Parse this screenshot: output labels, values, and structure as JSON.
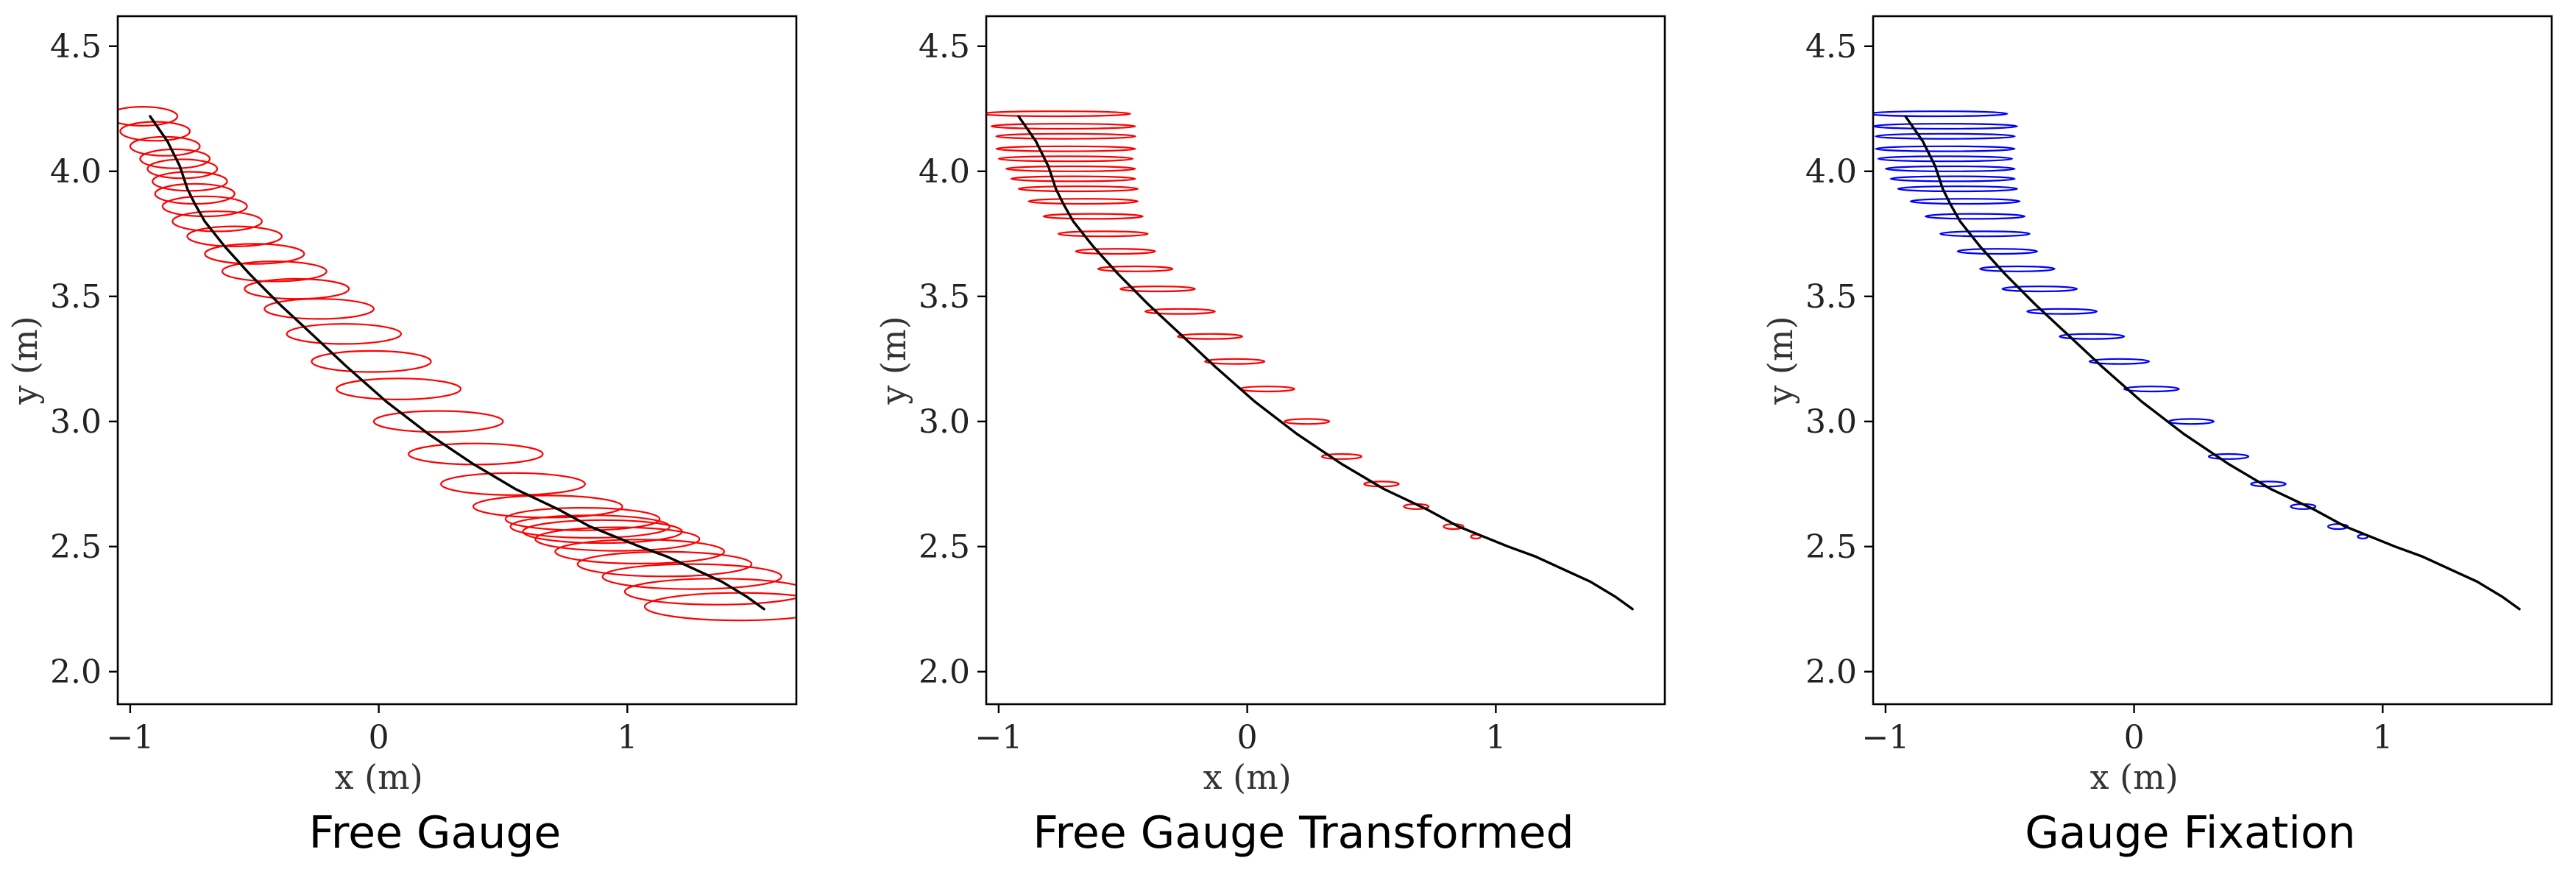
{
  "chart_data": [
    {
      "type": "line",
      "caption": "Free Gauge",
      "xlabel": "x (m)",
      "ylabel": "y (m)",
      "xlim": [
        -1.05,
        1.68
      ],
      "ylim": [
        1.87,
        4.62
      ],
      "xticks": [
        -1,
        0,
        1
      ],
      "xtick_labels": [
        "−1",
        "0",
        "1"
      ],
      "yticks": [
        2.0,
        2.5,
        3.0,
        3.5,
        4.0,
        4.5
      ],
      "ytick_labels": [
        "2.0",
        "2.5",
        "3.0",
        "3.5",
        "4.0",
        "4.5"
      ],
      "grid": false,
      "trajectory_color": "#000000",
      "ellipse_color": "#ff0000",
      "trajectory": {
        "x": [
          -0.92,
          -0.85,
          -0.8,
          -0.77,
          -0.74,
          -0.7,
          -0.62,
          -0.52,
          -0.4,
          -0.27,
          -0.13,
          0.03,
          0.2,
          0.38,
          0.55,
          0.72,
          0.85,
          0.95,
          1.05,
          1.16,
          1.27,
          1.38,
          1.48,
          1.55
        ],
        "y": [
          4.22,
          4.12,
          4.02,
          3.93,
          3.87,
          3.8,
          3.7,
          3.59,
          3.47,
          3.35,
          3.22,
          3.08,
          2.95,
          2.83,
          2.73,
          2.65,
          2.58,
          2.54,
          2.5,
          2.46,
          2.41,
          2.36,
          2.3,
          2.25
        ]
      },
      "uncertainty_ellipses": [
        {
          "x": -0.95,
          "y": 4.22,
          "sx": 0.14,
          "sy": 0.038
        },
        {
          "x": -0.9,
          "y": 4.16,
          "sx": 0.14,
          "sy": 0.038
        },
        {
          "x": -0.86,
          "y": 4.1,
          "sx": 0.14,
          "sy": 0.038
        },
        {
          "x": -0.82,
          "y": 4.05,
          "sx": 0.14,
          "sy": 0.038
        },
        {
          "x": -0.79,
          "y": 4.01,
          "sx": 0.14,
          "sy": 0.038
        },
        {
          "x": -0.76,
          "y": 3.96,
          "sx": 0.15,
          "sy": 0.038
        },
        {
          "x": -0.74,
          "y": 3.91,
          "sx": 0.16,
          "sy": 0.04
        },
        {
          "x": -0.7,
          "y": 3.86,
          "sx": 0.17,
          "sy": 0.04
        },
        {
          "x": -0.65,
          "y": 3.8,
          "sx": 0.18,
          "sy": 0.04
        },
        {
          "x": -0.58,
          "y": 3.74,
          "sx": 0.19,
          "sy": 0.04
        },
        {
          "x": -0.5,
          "y": 3.67,
          "sx": 0.2,
          "sy": 0.04
        },
        {
          "x": -0.42,
          "y": 3.6,
          "sx": 0.21,
          "sy": 0.04
        },
        {
          "x": -0.33,
          "y": 3.53,
          "sx": 0.21,
          "sy": 0.04
        },
        {
          "x": -0.24,
          "y": 3.45,
          "sx": 0.22,
          "sy": 0.04
        },
        {
          "x": -0.14,
          "y": 3.35,
          "sx": 0.23,
          "sy": 0.04
        },
        {
          "x": -0.03,
          "y": 3.24,
          "sx": 0.24,
          "sy": 0.042
        },
        {
          "x": 0.08,
          "y": 3.13,
          "sx": 0.25,
          "sy": 0.042
        },
        {
          "x": 0.24,
          "y": 3.0,
          "sx": 0.26,
          "sy": 0.042
        },
        {
          "x": 0.39,
          "y": 2.87,
          "sx": 0.27,
          "sy": 0.042
        },
        {
          "x": 0.54,
          "y": 2.75,
          "sx": 0.29,
          "sy": 0.044
        },
        {
          "x": 0.68,
          "y": 2.66,
          "sx": 0.3,
          "sy": 0.044
        },
        {
          "x": 0.82,
          "y": 2.61,
          "sx": 0.31,
          "sy": 0.045
        },
        {
          "x": 0.85,
          "y": 2.58,
          "sx": 0.32,
          "sy": 0.045
        },
        {
          "x": 0.9,
          "y": 2.56,
          "sx": 0.32,
          "sy": 0.046
        },
        {
          "x": 0.96,
          "y": 2.53,
          "sx": 0.33,
          "sy": 0.047
        },
        {
          "x": 1.05,
          "y": 2.48,
          "sx": 0.34,
          "sy": 0.048
        },
        {
          "x": 1.15,
          "y": 2.43,
          "sx": 0.35,
          "sy": 0.049
        },
        {
          "x": 1.26,
          "y": 2.38,
          "sx": 0.36,
          "sy": 0.05
        },
        {
          "x": 1.36,
          "y": 2.32,
          "sx": 0.37,
          "sy": 0.052
        },
        {
          "x": 1.45,
          "y": 2.26,
          "sx": 0.38,
          "sy": 0.055
        }
      ]
    },
    {
      "type": "line",
      "caption": "Free Gauge Transformed",
      "xlabel": "x (m)",
      "ylabel": "y (m)",
      "xlim": [
        -1.05,
        1.68
      ],
      "ylim": [
        1.87,
        4.62
      ],
      "xticks": [
        -1,
        0,
        1
      ],
      "xtick_labels": [
        "−1",
        "0",
        "1"
      ],
      "yticks": [
        2.0,
        2.5,
        3.0,
        3.5,
        4.0,
        4.5
      ],
      "ytick_labels": [
        "2.0",
        "2.5",
        "3.0",
        "3.5",
        "4.0",
        "4.5"
      ],
      "grid": false,
      "trajectory_color": "#000000",
      "ellipse_color": "#ff0000",
      "trajectory": {
        "x": [
          -0.92,
          -0.85,
          -0.8,
          -0.77,
          -0.74,
          -0.7,
          -0.62,
          -0.52,
          -0.4,
          -0.27,
          -0.13,
          0.03,
          0.2,
          0.38,
          0.55,
          0.72,
          0.85,
          0.95,
          1.05,
          1.16,
          1.27,
          1.38,
          1.48,
          1.55
        ],
        "y": [
          4.22,
          4.12,
          4.02,
          3.93,
          3.87,
          3.8,
          3.7,
          3.59,
          3.47,
          3.35,
          3.22,
          3.08,
          2.95,
          2.83,
          2.73,
          2.65,
          2.58,
          2.54,
          2.5,
          2.46,
          2.41,
          2.36,
          2.3,
          2.25
        ]
      },
      "uncertainty_ellipses": [
        {
          "x": -0.77,
          "y": 4.23,
          "sx": 0.3,
          "sy": 0.01
        },
        {
          "x": -0.74,
          "y": 4.18,
          "sx": 0.29,
          "sy": 0.01
        },
        {
          "x": -0.73,
          "y": 4.14,
          "sx": 0.28,
          "sy": 0.01
        },
        {
          "x": -0.73,
          "y": 4.09,
          "sx": 0.28,
          "sy": 0.01
        },
        {
          "x": -0.73,
          "y": 4.05,
          "sx": 0.27,
          "sy": 0.01
        },
        {
          "x": -0.71,
          "y": 4.01,
          "sx": 0.26,
          "sy": 0.01
        },
        {
          "x": -0.7,
          "y": 3.97,
          "sx": 0.25,
          "sy": 0.01
        },
        {
          "x": -0.68,
          "y": 3.93,
          "sx": 0.24,
          "sy": 0.01
        },
        {
          "x": -0.66,
          "y": 3.88,
          "sx": 0.22,
          "sy": 0.01
        },
        {
          "x": -0.62,
          "y": 3.82,
          "sx": 0.2,
          "sy": 0.01
        },
        {
          "x": -0.58,
          "y": 3.75,
          "sx": 0.18,
          "sy": 0.01
        },
        {
          "x": -0.53,
          "y": 3.68,
          "sx": 0.16,
          "sy": 0.01
        },
        {
          "x": -0.45,
          "y": 3.61,
          "sx": 0.15,
          "sy": 0.01
        },
        {
          "x": -0.36,
          "y": 3.53,
          "sx": 0.15,
          "sy": 0.01
        },
        {
          "x": -0.27,
          "y": 3.44,
          "sx": 0.14,
          "sy": 0.01
        },
        {
          "x": -0.15,
          "y": 3.34,
          "sx": 0.13,
          "sy": 0.01
        },
        {
          "x": -0.05,
          "y": 3.24,
          "sx": 0.12,
          "sy": 0.01
        },
        {
          "x": 0.08,
          "y": 3.13,
          "sx": 0.11,
          "sy": 0.01
        },
        {
          "x": 0.24,
          "y": 3.0,
          "sx": 0.09,
          "sy": 0.01
        },
        {
          "x": 0.38,
          "y": 2.86,
          "sx": 0.08,
          "sy": 0.01
        },
        {
          "x": 0.54,
          "y": 2.75,
          "sx": 0.07,
          "sy": 0.01
        },
        {
          "x": 0.68,
          "y": 2.66,
          "sx": 0.05,
          "sy": 0.01
        },
        {
          "x": 0.83,
          "y": 2.58,
          "sx": 0.04,
          "sy": 0.01
        },
        {
          "x": 0.92,
          "y": 2.54,
          "sx": 0.02,
          "sy": 0.008
        }
      ]
    },
    {
      "type": "line",
      "caption": "Gauge Fixation",
      "xlabel": "x (m)",
      "ylabel": "y (m)",
      "xlim": [
        -1.05,
        1.68
      ],
      "ylim": [
        1.87,
        4.62
      ],
      "xticks": [
        -1,
        0,
        1
      ],
      "xtick_labels": [
        "−1",
        "0",
        "1"
      ],
      "yticks": [
        2.0,
        2.5,
        3.0,
        3.5,
        4.0,
        4.5
      ],
      "ytick_labels": [
        "2.0",
        "2.5",
        "3.0",
        "3.5",
        "4.0",
        "4.5"
      ],
      "grid": false,
      "trajectory_color": "#000000",
      "ellipse_color": "#0000ff",
      "trajectory": {
        "x": [
          -0.92,
          -0.85,
          -0.8,
          -0.77,
          -0.74,
          -0.7,
          -0.62,
          -0.52,
          -0.4,
          -0.27,
          -0.13,
          0.03,
          0.2,
          0.38,
          0.55,
          0.72,
          0.85,
          0.95,
          1.05,
          1.16,
          1.27,
          1.38,
          1.48,
          1.55
        ],
        "y": [
          4.22,
          4.12,
          4.02,
          3.93,
          3.87,
          3.8,
          3.7,
          3.59,
          3.47,
          3.35,
          3.22,
          3.08,
          2.95,
          2.83,
          2.73,
          2.65,
          2.58,
          2.54,
          2.5,
          2.46,
          2.41,
          2.36,
          2.3,
          2.25
        ]
      },
      "uncertainty_ellipses": [
        {
          "x": -0.79,
          "y": 4.23,
          "sx": 0.28,
          "sy": 0.01
        },
        {
          "x": -0.76,
          "y": 4.18,
          "sx": 0.29,
          "sy": 0.01
        },
        {
          "x": -0.76,
          "y": 4.14,
          "sx": 0.28,
          "sy": 0.01
        },
        {
          "x": -0.76,
          "y": 4.09,
          "sx": 0.28,
          "sy": 0.01
        },
        {
          "x": -0.76,
          "y": 4.05,
          "sx": 0.27,
          "sy": 0.01
        },
        {
          "x": -0.74,
          "y": 4.01,
          "sx": 0.26,
          "sy": 0.01
        },
        {
          "x": -0.73,
          "y": 3.97,
          "sx": 0.25,
          "sy": 0.01
        },
        {
          "x": -0.71,
          "y": 3.93,
          "sx": 0.24,
          "sy": 0.01
        },
        {
          "x": -0.68,
          "y": 3.88,
          "sx": 0.22,
          "sy": 0.01
        },
        {
          "x": -0.64,
          "y": 3.82,
          "sx": 0.2,
          "sy": 0.01
        },
        {
          "x": -0.6,
          "y": 3.75,
          "sx": 0.18,
          "sy": 0.01
        },
        {
          "x": -0.55,
          "y": 3.68,
          "sx": 0.16,
          "sy": 0.01
        },
        {
          "x": -0.47,
          "y": 3.61,
          "sx": 0.15,
          "sy": 0.01
        },
        {
          "x": -0.38,
          "y": 3.53,
          "sx": 0.15,
          "sy": 0.01
        },
        {
          "x": -0.29,
          "y": 3.44,
          "sx": 0.14,
          "sy": 0.01
        },
        {
          "x": -0.17,
          "y": 3.34,
          "sx": 0.13,
          "sy": 0.01
        },
        {
          "x": -0.06,
          "y": 3.24,
          "sx": 0.12,
          "sy": 0.01
        },
        {
          "x": 0.07,
          "y": 3.13,
          "sx": 0.11,
          "sy": 0.01
        },
        {
          "x": 0.23,
          "y": 3.0,
          "sx": 0.09,
          "sy": 0.01
        },
        {
          "x": 0.38,
          "y": 2.86,
          "sx": 0.08,
          "sy": 0.01
        },
        {
          "x": 0.54,
          "y": 2.75,
          "sx": 0.07,
          "sy": 0.01
        },
        {
          "x": 0.68,
          "y": 2.66,
          "sx": 0.05,
          "sy": 0.01
        },
        {
          "x": 0.82,
          "y": 2.58,
          "sx": 0.04,
          "sy": 0.01
        },
        {
          "x": 0.92,
          "y": 2.54,
          "sx": 0.02,
          "sy": 0.008
        }
      ]
    }
  ]
}
